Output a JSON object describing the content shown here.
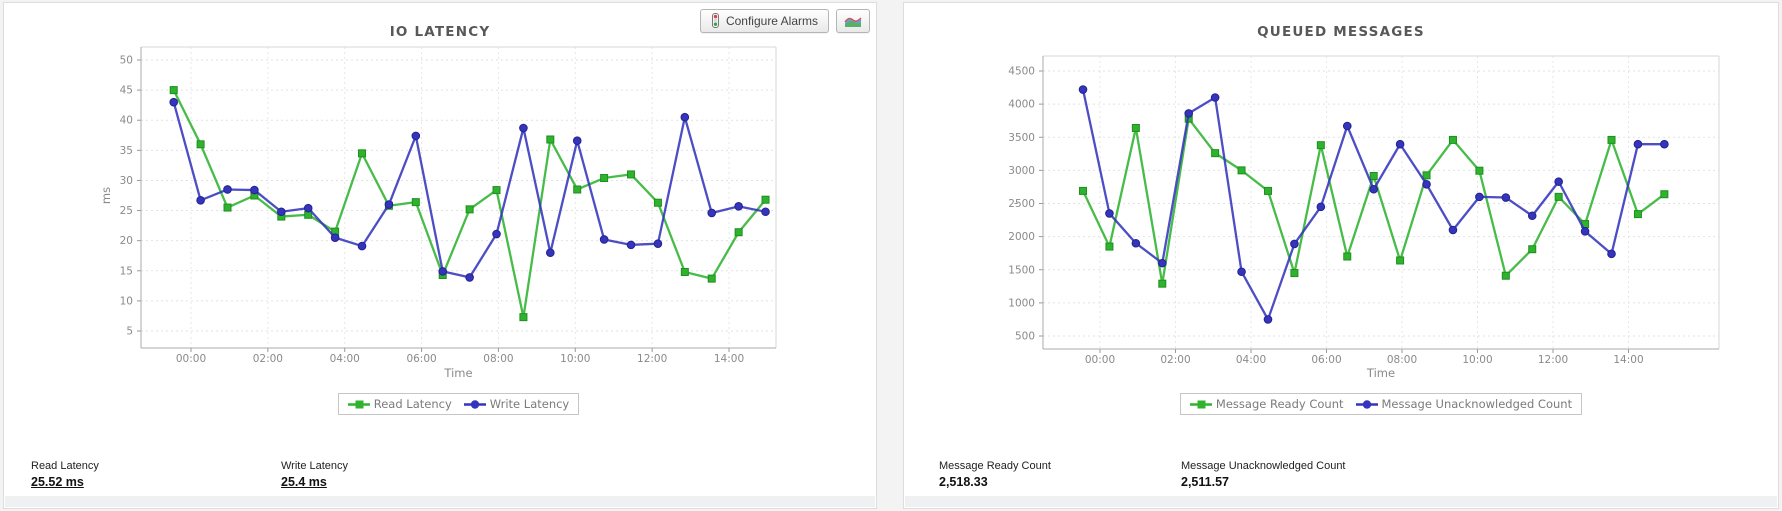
{
  "theme": {
    "series_green": "#2fb32f",
    "series_blue": "#3434bd",
    "card_background": "#ffffff",
    "page_background": "#f3f3f3"
  },
  "left_panel": {
    "toolbar": {
      "configure_alarms_label": "Configure Alarms",
      "icons": {
        "configure_alarms": "traffic-light-icon",
        "chart_toggle": "area-chart-icon"
      }
    },
    "stats": [
      {
        "label": "Read Latency",
        "value": "25.52 ms"
      },
      {
        "label": "Write Latency",
        "value": "25.4 ms"
      }
    ]
  },
  "right_panel": {
    "stats": [
      {
        "label": "Message Ready Count",
        "value": "2,518.33"
      },
      {
        "label": "Message Unacknowledged Count",
        "value": "2,511.57"
      }
    ]
  },
  "chart_data": [
    {
      "type": "line",
      "title": "IO LATENCY",
      "xlabel": "Time",
      "ylabel": "ms",
      "grid": true,
      "legend_position": "bottom",
      "ylim": [
        5,
        50
      ],
      "y_ticks": [
        5,
        10,
        15,
        20,
        25,
        30,
        35,
        40,
        45,
        50
      ],
      "x_tick_hours": [
        0,
        2,
        4,
        6,
        8,
        10,
        12,
        14
      ],
      "x_tick_labels": [
        "00:00",
        "02:00",
        "04:00",
        "06:00",
        "08:00",
        "10:00",
        "12:00",
        "14:00"
      ],
      "x_hours": [
        -0.45,
        0.25,
        0.95,
        1.65,
        2.35,
        3.05,
        3.75,
        4.45,
        5.15,
        5.85,
        6.55,
        7.25,
        7.95,
        8.65,
        9.35,
        10.05,
        10.75,
        11.45,
        12.15,
        12.85,
        13.55,
        14.25,
        14.95
      ],
      "series": [
        {
          "name": "Read Latency",
          "color": "#2fb32f",
          "edge": "#1e8f1e",
          "marker": "square",
          "values": [
            45,
            36,
            25.5,
            27.5,
            24,
            24.3,
            21.5,
            34.5,
            25.8,
            26.4,
            14.3,
            25.2,
            28.4,
            7.3,
            36.8,
            28.5,
            30.4,
            31,
            26.3,
            14.8,
            13.7,
            21.4,
            26.8
          ]
        },
        {
          "name": "Write Latency",
          "color": "#3434bd",
          "edge": "#23238f",
          "marker": "circle",
          "values": [
            43,
            26.7,
            28.5,
            28.4,
            24.8,
            25.4,
            20.5,
            19.1,
            26,
            37.4,
            14.9,
            13.9,
            21.1,
            38.7,
            18,
            36.6,
            20.2,
            19.3,
            19.5,
            40.5,
            24.6,
            25.7,
            24.8
          ]
        }
      ]
    },
    {
      "type": "line",
      "title": "QUEUED MESSAGES",
      "xlabel": "Time",
      "ylabel": "'",
      "grid": true,
      "legend_position": "bottom",
      "ylim": [
        500,
        4500
      ],
      "y_ticks": [
        500,
        1000,
        1500,
        2000,
        2500,
        3000,
        3500,
        4000,
        4500
      ],
      "x_tick_hours": [
        0,
        2,
        4,
        6,
        8,
        10,
        12,
        14
      ],
      "x_tick_labels": [
        "00:00",
        "02:00",
        "04:00",
        "06:00",
        "08:00",
        "10:00",
        "12:00",
        "14:00"
      ],
      "x_hours": [
        -0.45,
        0.25,
        0.95,
        1.65,
        2.35,
        3.05,
        3.75,
        4.45,
        5.15,
        5.85,
        6.55,
        7.25,
        7.95,
        8.65,
        9.35,
        10.05,
        10.75,
        11.45,
        12.15,
        12.85,
        13.55,
        14.25,
        14.95
      ],
      "series": [
        {
          "name": "Message Ready Count",
          "color": "#2fb32f",
          "edge": "#1e8f1e",
          "marker": "square",
          "values": [
            2690,
            1850,
            3640,
            1290,
            3780,
            3260,
            3000,
            2690,
            1450,
            3380,
            1700,
            2915,
            1640,
            2925,
            3460,
            2995,
            1410,
            1810,
            2600,
            2190,
            3460,
            2340,
            2640
          ]
        },
        {
          "name": "Message Unacknowledged Count",
          "color": "#3434bd",
          "edge": "#23238f",
          "marker": "circle",
          "values": [
            4220,
            2350,
            1900,
            1600,
            3860,
            4100,
            1470,
            750,
            1890,
            2450,
            3670,
            2715,
            3395,
            2790,
            2100,
            2600,
            2590,
            2315,
            2830,
            2080,
            1740,
            3395,
            3395
          ]
        }
      ]
    }
  ]
}
